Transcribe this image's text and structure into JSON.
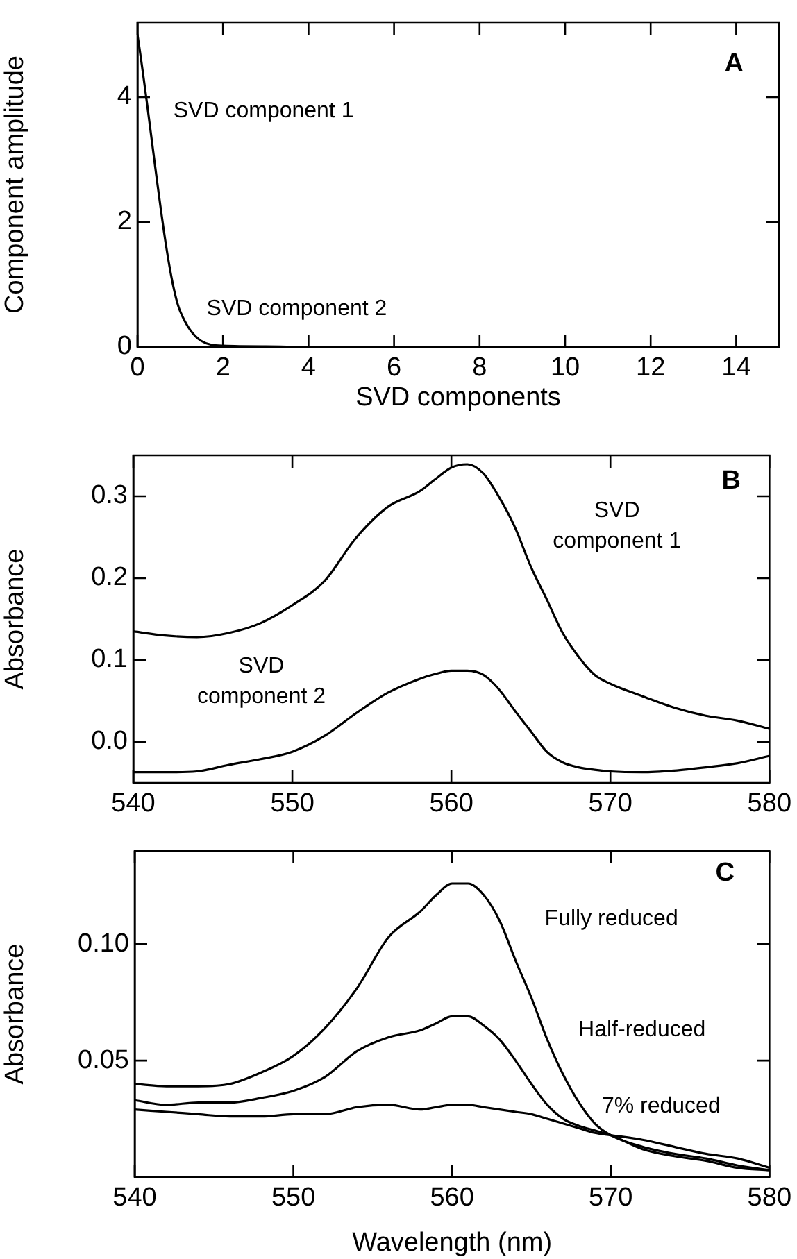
{
  "chart_data": [
    {
      "type": "line",
      "annotations": [
        "A",
        "SVD component 1",
        {
          "text": "SVD component 2",
          "x": 1,
          "y": 0.57
        }
      ],
      "xlabel": "SVD components",
      "ylabel": "Component amplitude",
      "x": [
        0,
        1,
        2,
        3,
        4,
        5,
        6,
        7,
        8,
        9,
        10,
        11,
        12,
        13,
        14,
        15
      ],
      "series": [
        {
          "color": "#000000",
          "values": [
            5.0,
            0.57,
            0.02,
            0.01,
            0,
            0,
            0,
            0,
            0,
            0,
            0,
            0,
            0,
            0,
            0,
            0
          ]
        }
      ],
      "xlim": [
        0,
        15
      ],
      "ylim": [
        0,
        5.2
      ],
      "xticks": [
        0,
        2,
        4,
        6,
        8,
        10,
        12,
        14
      ],
      "yticks": [
        0,
        2,
        4
      ]
    },
    {
      "type": "line",
      "annotations": [
        "B",
        {
          "text": "SVD component 1",
          "x": 565,
          "y": 0.214
        },
        {
          "text": "SVD component 2",
          "x": 556,
          "y": 0.06
        }
      ],
      "ylabel": "Absorbance",
      "x": [
        540,
        542,
        544,
        546,
        548,
        550,
        552,
        554,
        556,
        558,
        559,
        560,
        561,
        562,
        563,
        564,
        565,
        566,
        567,
        568,
        569,
        570,
        572,
        574,
        576,
        578,
        580
      ],
      "series": [
        {
          "color": "#000000",
          "values": [
            0.135,
            0.13,
            0.128,
            0.133,
            0.145,
            0.167,
            0.196,
            0.249,
            0.287,
            0.306,
            0.321,
            0.335,
            0.339,
            0.328,
            0.299,
            0.262,
            0.214,
            0.174,
            0.133,
            0.104,
            0.082,
            0.071,
            0.056,
            0.042,
            0.032,
            0.026,
            0.016
          ]
        },
        {
          "color": "#000000",
          "values": [
            -0.037,
            -0.037,
            -0.036,
            -0.028,
            -0.021,
            -0.012,
            0.007,
            0.035,
            0.06,
            0.077,
            0.083,
            0.087,
            0.087,
            0.082,
            0.064,
            0.038,
            0.013,
            -0.012,
            -0.025,
            -0.031,
            -0.034,
            -0.036,
            -0.037,
            -0.035,
            -0.031,
            -0.026,
            -0.017
          ]
        }
      ],
      "xlim": [
        540,
        580
      ],
      "ylim": [
        -0.05,
        0.35
      ],
      "xticks": [
        540,
        550,
        560,
        570,
        580
      ],
      "yticks": [
        {
          "value": 0,
          "label": "0.0"
        },
        0.1,
        0.2,
        0.3
      ]
    },
    {
      "type": "line",
      "annotations": [
        "C",
        {
          "text": "Fully reduced",
          "x": 564,
          "y": 0.093
        },
        "Half-reduced",
        "7% reduced"
      ],
      "xlabel": "Wavelength (nm)",
      "ylabel": "Absorbance",
      "x": [
        540,
        542,
        544,
        546,
        548,
        550,
        552,
        554,
        556,
        558,
        559,
        560,
        561,
        562,
        563,
        564,
        565,
        566,
        567,
        568,
        569,
        570,
        572,
        574,
        576,
        578,
        580
      ],
      "series": [
        {
          "color": "#000000",
          "values": [
            0.04,
            0.039,
            0.039,
            0.04,
            0.045,
            0.052,
            0.064,
            0.081,
            0.103,
            0.114,
            0.121,
            0.126,
            0.126,
            0.121,
            0.11,
            0.093,
            0.077,
            0.059,
            0.044,
            0.032,
            0.023,
            0.018,
            0.013,
            0.01,
            0.008,
            0.005,
            0.003
          ]
        },
        {
          "color": "#000000",
          "values": [
            0.033,
            0.031,
            0.032,
            0.032,
            0.034,
            0.037,
            0.043,
            0.054,
            0.06,
            0.063,
            0.066,
            0.069,
            0.069,
            0.065,
            0.059,
            0.05,
            0.04,
            0.031,
            0.025,
            0.022,
            0.02,
            0.018,
            0.012,
            0.009,
            0.007,
            0.004,
            0.003
          ]
        },
        {
          "color": "#000000",
          "values": [
            0.029,
            0.028,
            0.027,
            0.026,
            0.026,
            0.027,
            0.027,
            0.03,
            0.031,
            0.029,
            0.03,
            0.031,
            0.031,
            0.03,
            0.029,
            0.028,
            0.027,
            0.025,
            0.023,
            0.021,
            0.019,
            0.018,
            0.016,
            0.013,
            0.01,
            0.008,
            0.004
          ]
        }
      ],
      "xlim": [
        540,
        580
      ],
      "ylim": [
        0,
        0.14
      ],
      "xticks": [
        540,
        550,
        560,
        570,
        580
      ],
      "yticks": [
        {
          "value": 0.05,
          "label": "0.05"
        },
        {
          "value": 0.1,
          "label": "0.10"
        }
      ]
    }
  ]
}
